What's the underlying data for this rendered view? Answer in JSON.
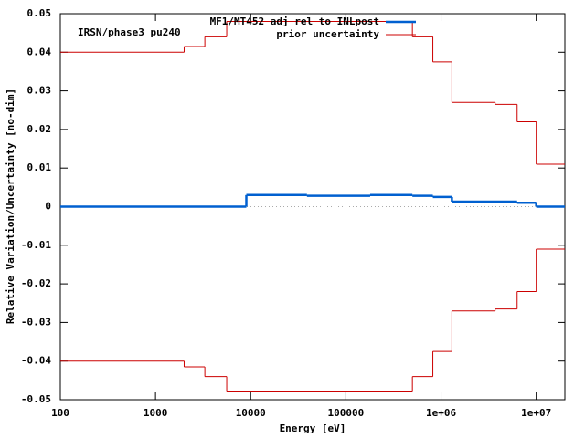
{
  "chart_data": {
    "type": "step",
    "annotation": "IRSN/phase3 pu240",
    "xlabel": "Energy [eV]",
    "ylabel": "Relative Variation/Uncertainty [no-dim]",
    "xscale": "log",
    "xlim": [
      100,
      20000000
    ],
    "ylim": [
      -0.05,
      0.05
    ],
    "xticks": [
      100,
      1000,
      10000,
      100000,
      {
        "value": 1000000,
        "label": "1e+06"
      },
      {
        "value": 10000000,
        "label": "1e+07"
      }
    ],
    "yticks": [
      -0.05,
      -0.04,
      -0.03,
      -0.02,
      -0.01,
      0,
      0.01,
      0.02,
      0.03,
      0.04,
      0.05
    ],
    "legend": "top-right",
    "series": [
      {
        "name": "MF1/MT452 adj rel to INLpost",
        "color": "#0060d0",
        "bins": [
          100,
          9000,
          39000,
          180000,
          500000,
          820000,
          1300000,
          6300000,
          10000000,
          20000000
        ],
        "values": [
          0,
          0.003,
          0.0028,
          0.003,
          0.0028,
          0.0025,
          0.0013,
          0.001,
          0
        ]
      },
      {
        "name": "prior uncertainty",
        "color": "#cc0000",
        "bins": [
          100,
          2000,
          3300,
          5600,
          500000,
          820000,
          1300000,
          3700000,
          6300000,
          10000000,
          20000000
        ],
        "values": [
          0.04,
          0.0415,
          0.044,
          0.048,
          0.044,
          0.0375,
          0.027,
          0.0265,
          0.022,
          0.011
        ]
      },
      {
        "color": "#cc0000",
        "bins": [
          100,
          2000,
          3300,
          5600,
          500000,
          820000,
          1300000,
          3700000,
          6300000,
          10000000,
          20000000
        ],
        "values": [
          -0.04,
          -0.0415,
          -0.044,
          -0.048,
          -0.044,
          -0.0375,
          -0.027,
          -0.0265,
          -0.022,
          -0.011
        ]
      }
    ]
  }
}
